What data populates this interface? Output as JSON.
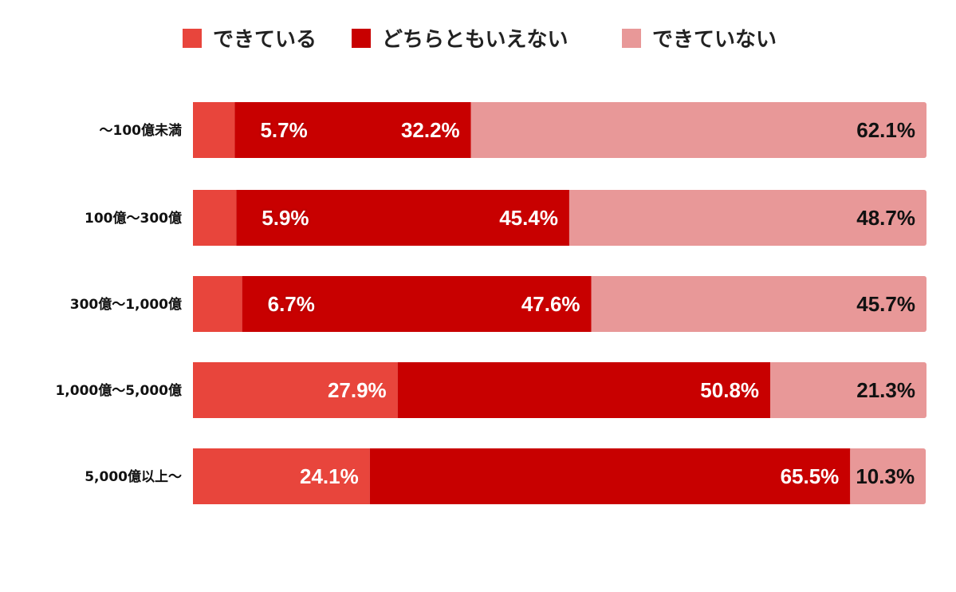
{
  "chart_data": {
    "type": "bar",
    "orientation": "horizontal",
    "stacked": true,
    "title": "",
    "xlabel": "",
    "ylabel": "",
    "xlim": [
      0,
      100
    ],
    "grid": false,
    "legend_position": "top-center",
    "categories": [
      "〜100億未満",
      "100億〜300億",
      "300億〜1,000億",
      "1,000億〜5,000億",
      "5,000億以上〜"
    ],
    "series": [
      {
        "name": "できている",
        "color": "#e8453c",
        "values": [
          5.7,
          5.9,
          6.7,
          27.9,
          24.1
        ],
        "labels": [
          "5.7%",
          "5.9%",
          "6.7%",
          "27.9%",
          "24.1%"
        ]
      },
      {
        "name": "どちらともいえない",
        "color": "#c80000",
        "values": [
          32.2,
          45.4,
          47.6,
          50.8,
          65.5
        ],
        "labels": [
          "32.2%",
          "45.4%",
          "47.6%",
          "50.8%",
          "65.5%"
        ]
      },
      {
        "name": "できていない",
        "color": "#e89898",
        "values": [
          62.1,
          48.7,
          45.7,
          21.3,
          10.3
        ],
        "labels": [
          "62.1%",
          "48.7%",
          "45.7%",
          "21.3%",
          "10.3%"
        ]
      }
    ]
  }
}
